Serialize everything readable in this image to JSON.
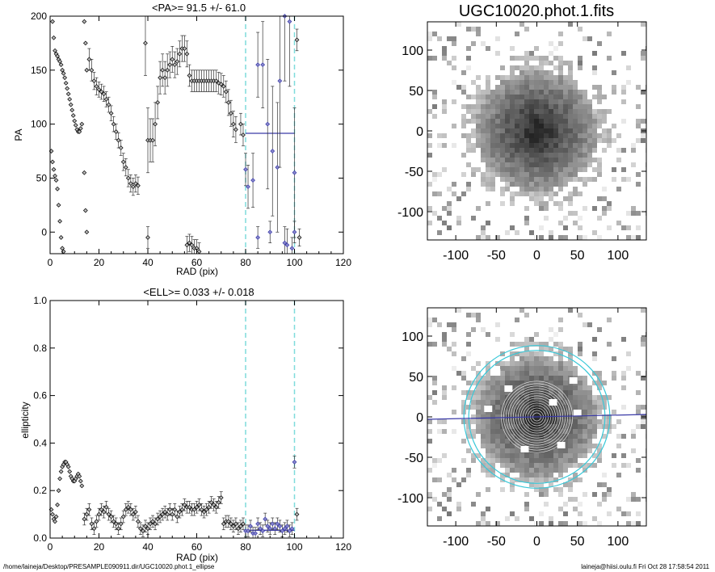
{
  "footer": {
    "path": "/home/laineja/Desktop/PRESAMPLE090911.dir/UGC10020.phot.1_ellipse",
    "user": "laineja@hiisi.oulu.fi  Fri Oct 28 17:58:54 2011"
  },
  "colors": {
    "blue": "#3a3aa8",
    "cyan": "#7fdcdc",
    "ellipse_fit": "#38c8d8"
  },
  "chart_data": [
    {
      "type": "scatter",
      "title": "<PA>=  91.5 +/-  61.0",
      "xlabel": "RAD (pix)",
      "ylabel": "PA",
      "xlim": [
        0,
        120
      ],
      "ylim": [
        -20,
        200
      ],
      "xticks": [
        "0",
        "20",
        "40",
        "60",
        "80",
        "100",
        "120"
      ],
      "yticks": [
        "0",
        "50",
        "100",
        "150",
        "200"
      ],
      "vlines": [
        80,
        100
      ],
      "hline": {
        "x": [
          80,
          100
        ],
        "y": 91.5
      },
      "series": [
        {
          "x": [
            1,
            1.5,
            2,
            2.5,
            3,
            3.5,
            4,
            4.5,
            5,
            5.5,
            6,
            6.5,
            7,
            7.5,
            8,
            8.5,
            9,
            9.5,
            10,
            10.5,
            11,
            11.5,
            12,
            12.5,
            13
          ],
          "y": [
            195,
            180,
            168,
            165,
            163,
            160,
            158,
            155,
            150,
            147,
            143,
            138,
            133,
            128,
            123,
            118,
            113,
            108,
            103,
            99,
            95,
            93,
            93,
            96,
            100
          ]
        },
        {
          "x": [
            0.5,
            1,
            1.5,
            2,
            2.5,
            3,
            3.5,
            4,
            4.5,
            5,
            5.5
          ],
          "y": [
            75,
            65,
            58,
            52,
            48,
            40,
            25,
            10,
            -5,
            -15,
            -18
          ]
        },
        {
          "x": [
            14,
            14.5,
            15
          ],
          "y": [
            195,
            175,
            150
          ]
        },
        {
          "x": [
            14,
            14.5,
            15
          ],
          "y": [
            55,
            20,
            0
          ]
        },
        {
          "x": [
            16,
            17,
            18,
            19,
            20,
            21,
            22,
            23,
            24,
            25,
            26,
            27,
            28,
            29,
            30,
            31,
            32,
            33,
            34,
            35,
            36
          ],
          "y": [
            160,
            150,
            140,
            135,
            132,
            130,
            128,
            123,
            118,
            110,
            100,
            93,
            85,
            78,
            65,
            60,
            50,
            45,
            42,
            45,
            43
          ],
          "err": [
            10,
            10,
            8,
            8,
            7,
            7,
            7,
            7,
            7,
            7,
            7,
            7,
            7,
            7,
            8,
            8,
            8,
            8,
            8,
            8,
            8
          ]
        },
        {
          "x": [
            39,
            40,
            41,
            42,
            43,
            44,
            45,
            46,
            47,
            48,
            49,
            50,
            51,
            52,
            53,
            54,
            55,
            56,
            57,
            58,
            59,
            60,
            61,
            62,
            63,
            64,
            65,
            66,
            67,
            68,
            69,
            70,
            71,
            72,
            73,
            74,
            75,
            76
          ],
          "y": [
            175,
            85,
            85,
            85,
            100,
            120,
            143,
            150,
            143,
            150,
            155,
            160,
            155,
            158,
            165,
            170,
            170,
            165,
            145,
            140,
            140,
            140,
            140,
            140,
            140,
            140,
            140,
            140,
            140,
            140,
            138,
            137,
            135,
            130,
            120,
            110,
            100,
            95
          ],
          "err": [
            30,
            30,
            20,
            20,
            20,
            15,
            15,
            15,
            15,
            15,
            12,
            12,
            12,
            12,
            12,
            12,
            12,
            12,
            10,
            10,
            10,
            10,
            10,
            10,
            10,
            10,
            10,
            10,
            10,
            10,
            10,
            10,
            10,
            10,
            12,
            12,
            12,
            12
          ]
        },
        {
          "x": [
            40,
            56,
            57,
            58,
            59,
            60,
            61
          ],
          "y": [
            -5,
            -12,
            -10,
            -12,
            -15,
            -15,
            -18
          ],
          "err": [
            10,
            8,
            8,
            8,
            8,
            8,
            8
          ]
        },
        {
          "x": [
            78,
            79,
            80,
            81,
            83,
            85,
            87,
            89,
            91,
            93,
            94,
            96,
            98,
            100,
            101
          ],
          "y": [
            100,
            90,
            58,
            42,
            48,
            155,
            155,
            100,
            75,
            60,
            140,
            200,
            195,
            55,
            178
          ],
          "err": [
            10,
            10,
            15,
            20,
            25,
            30,
            40,
            60,
            60,
            60,
            80,
            60,
            60,
            60,
            10
          ]
        },
        {
          "x": [
            85,
            90,
            96,
            97,
            99,
            100,
            102
          ],
          "y": [
            -5,
            0,
            -10,
            -12,
            -15,
            0,
            -5
          ],
          "err": [
            10,
            10,
            15,
            15,
            10,
            10,
            8
          ]
        }
      ]
    },
    {
      "type": "scatter",
      "title": "<ELL>= 0.033 +/-  0.018",
      "xlabel": "RAD (pix)",
      "ylabel": "ellipticity",
      "xlim": [
        0,
        120
      ],
      "ylim": [
        0,
        1.0
      ],
      "xticks": [
        "0",
        "20",
        "40",
        "60",
        "80",
        "100",
        "120"
      ],
      "yticks": [
        "0.0",
        "0.2",
        "0.4",
        "0.6",
        "0.8",
        "1.0"
      ],
      "vlines": [
        80,
        100
      ],
      "hline": {
        "x": [
          80,
          100
        ],
        "y": 0.033
      },
      "series": [
        {
          "x": [
            0.5,
            1,
            1.5,
            2,
            2.5,
            3,
            3.5,
            4,
            4.5,
            5,
            5.5,
            6,
            6.5,
            7,
            7.5,
            8,
            8.5,
            9,
            9.5,
            10,
            10.5,
            11,
            11.5,
            12,
            12.5,
            13
          ],
          "y": [
            0.12,
            0.1,
            0.08,
            0.07,
            0.09,
            0.14,
            0.2,
            0.25,
            0.28,
            0.3,
            0.31,
            0.32,
            0.32,
            0.31,
            0.3,
            0.28,
            0.26,
            0.25,
            0.24,
            0.24,
            0.25,
            0.26,
            0.27,
            0.26,
            0.24,
            0.22
          ]
        },
        {
          "x": [
            14,
            15,
            16,
            17,
            18,
            19,
            20,
            21,
            22,
            23,
            24,
            25,
            26,
            27,
            28,
            29,
            30,
            31,
            32,
            33,
            34,
            35,
            36,
            37,
            38,
            39,
            40,
            41,
            42,
            43,
            44,
            45,
            46,
            47,
            48,
            49,
            50,
            51,
            52,
            53,
            54,
            55,
            56,
            57,
            58,
            59,
            60,
            61,
            62,
            63,
            64,
            65,
            66,
            67,
            68,
            69,
            70,
            71,
            72,
            73,
            74,
            75,
            76,
            77,
            78,
            79,
            80,
            81,
            82,
            83,
            84,
            85,
            86,
            87,
            88,
            89,
            90,
            91,
            92,
            93,
            94,
            95,
            96,
            97,
            98,
            99,
            100,
            101
          ],
          "y": [
            0.08,
            0.1,
            0.12,
            0.06,
            0.04,
            0.07,
            0.1,
            0.12,
            0.11,
            0.13,
            0.1,
            0.09,
            0.07,
            0.06,
            0.04,
            0.06,
            0.09,
            0.12,
            0.13,
            0.12,
            0.1,
            0.11,
            0.07,
            0.04,
            0.03,
            0.05,
            0.04,
            0.06,
            0.07,
            0.06,
            0.08,
            0.09,
            0.1,
            0.11,
            0.1,
            0.12,
            0.1,
            0.12,
            0.09,
            0.11,
            0.12,
            0.14,
            0.13,
            0.13,
            0.12,
            0.12,
            0.13,
            0.14,
            0.12,
            0.11,
            0.12,
            0.13,
            0.15,
            0.14,
            0.13,
            0.15,
            0.17,
            0.06,
            0.07,
            0.07,
            0.06,
            0.05,
            0.06,
            0.04,
            0.05,
            0.06,
            0.03,
            0.03,
            0.05,
            0.02,
            0.02,
            0.06,
            0.04,
            0.03,
            0.08,
            0.05,
            0.04,
            0.06,
            0.04,
            0.06,
            0.05,
            0.03,
            0.04,
            0.05,
            0.03,
            0.04,
            0.32,
            0.1
          ],
          "err": 0.025
        }
      ]
    },
    {
      "type": "heatmap",
      "title": "UGC10020.phot.1.fits",
      "xlim": [
        -135,
        135
      ],
      "ylim": [
        -135,
        135
      ],
      "xticks": [
        "-100",
        "-50",
        "0",
        "50",
        "100"
      ],
      "yticks": [
        "-100",
        "-50",
        "0",
        "50",
        "100"
      ],
      "description_values": {
        "center": [
          0,
          0
        ],
        "core_radius": 80
      }
    },
    {
      "type": "heatmap",
      "xlim": [
        -135,
        135
      ],
      "ylim": [
        -135,
        135
      ],
      "xticks": [
        "-100",
        "-50",
        "0",
        "50",
        "100"
      ],
      "yticks": [
        "-100",
        "-50",
        "0",
        "50",
        "100"
      ],
      "ellipses": [
        {
          "a": 90,
          "b": 88,
          "cx": 0,
          "cy": 0
        },
        {
          "a": 84,
          "b": 82,
          "cx": 0,
          "cy": 0
        }
      ],
      "pa_line": {
        "x": [
          -135,
          135
        ],
        "y": [
          -3,
          3
        ]
      }
    }
  ]
}
